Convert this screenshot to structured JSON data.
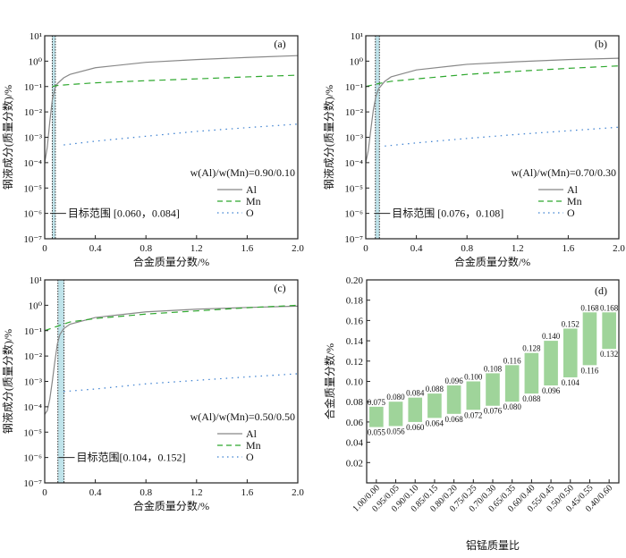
{
  "chart_data": [
    {
      "type": "line",
      "panel_label": "(a)",
      "xlabel": "合金质量分数/%",
      "ylabel": "钢液成分(质量分数)/%",
      "xlim": [
        0,
        2.0
      ],
      "ylim_log10": [
        -7,
        1
      ],
      "xticks": [
        "0",
        "0.4",
        "0.8",
        "1.2",
        "1.6",
        "2.0"
      ],
      "ratio_text": "w(Al)/w(Mn)=0.90/0.10",
      "target_text": "目标范围 [0.060，0.084]",
      "target": [
        0.06,
        0.084
      ],
      "series": [
        {
          "name": "Al",
          "x": [
            0,
            0.02,
            0.04,
            0.06,
            0.08,
            0.1,
            0.15,
            0.2,
            0.4,
            0.8,
            1.2,
            1.6,
            2.0
          ],
          "y": [
            0.0001,
            0.0004,
            0.004,
            0.03,
            0.08,
            0.13,
            0.22,
            0.3,
            0.55,
            0.9,
            1.15,
            1.4,
            1.65
          ]
        },
        {
          "name": "Mn",
          "x": [
            0.06,
            0.1,
            0.2,
            0.4,
            0.8,
            1.2,
            1.6,
            2.0
          ],
          "y": [
            0.1,
            0.11,
            0.12,
            0.14,
            0.17,
            0.2,
            0.24,
            0.28
          ]
        },
        {
          "name": "O",
          "x": [
            0.15,
            0.4,
            0.8,
            1.2,
            1.6,
            2.0
          ],
          "y": [
            0.0005,
            0.0007,
            0.0011,
            0.0017,
            0.0024,
            0.0033
          ]
        }
      ]
    },
    {
      "type": "line",
      "panel_label": "(b)",
      "xlabel": "合金质量分数/%",
      "ylabel": "钢液成分(质量分数)/%",
      "xlim": [
        0,
        2.0
      ],
      "ylim_log10": [
        -7,
        1
      ],
      "xticks": [
        "0",
        "0.4",
        "0.8",
        "1.2",
        "1.6",
        "2.0"
      ],
      "ratio_text": "w(Al)/w(Mn)=0.70/0.30",
      "target_text": "目标范围 [0.076，0.108]",
      "target": [
        0.076,
        0.108
      ],
      "series": [
        {
          "name": "Al",
          "x": [
            0,
            0.02,
            0.04,
            0.06,
            0.08,
            0.1,
            0.15,
            0.2,
            0.4,
            0.8,
            1.2,
            1.6,
            2.0
          ],
          "y": [
            0.0001,
            0.0003,
            0.002,
            0.012,
            0.04,
            0.08,
            0.16,
            0.24,
            0.45,
            0.75,
            0.95,
            1.15,
            1.3
          ]
        },
        {
          "name": "Mn",
          "x": [
            0,
            0.1,
            0.2,
            0.4,
            0.8,
            1.2,
            1.6,
            2.0
          ],
          "y": [
            0.1,
            0.13,
            0.16,
            0.2,
            0.3,
            0.4,
            0.52,
            0.65
          ]
        },
        {
          "name": "O",
          "x": [
            0.15,
            0.4,
            0.8,
            1.2,
            1.6,
            2.0
          ],
          "y": [
            0.00045,
            0.0006,
            0.0009,
            0.0013,
            0.0018,
            0.0025
          ]
        }
      ]
    },
    {
      "type": "line",
      "panel_label": "(c)",
      "xlabel": "合金质量分数/%",
      "ylabel": "钢液成分(质量分数)/%",
      "xlim": [
        0,
        2.0
      ],
      "ylim_log10": [
        -7,
        1
      ],
      "xticks": [
        "0",
        "0.4",
        "0.8",
        "1.2",
        "1.6",
        "2.0"
      ],
      "ratio_text": "w(Al)/w(Mn)=0.50/0.50",
      "target_text": "目标范围[0.104，0.152]",
      "target": [
        0.104,
        0.152
      ],
      "series": [
        {
          "name": "Al",
          "x": [
            0,
            0.02,
            0.04,
            0.06,
            0.08,
            0.1,
            0.12,
            0.15,
            0.2,
            0.4,
            0.8,
            1.2,
            1.6,
            2.0
          ],
          "y": [
            5e-05,
            7e-05,
            0.0002,
            0.001,
            0.006,
            0.03,
            0.07,
            0.12,
            0.18,
            0.33,
            0.55,
            0.7,
            0.82,
            0.92
          ]
        },
        {
          "name": "Mn",
          "x": [
            0,
            0.1,
            0.2,
            0.4,
            0.8,
            1.2,
            1.6,
            2.0
          ],
          "y": [
            0.1,
            0.15,
            0.22,
            0.3,
            0.45,
            0.6,
            0.8,
            1.0
          ]
        },
        {
          "name": "O",
          "x": [
            0.15,
            0.4,
            0.8,
            1.2,
            1.6,
            2.0
          ],
          "y": [
            0.0004,
            0.0005,
            0.0008,
            0.0011,
            0.0015,
            0.002
          ]
        }
      ]
    },
    {
      "type": "bar",
      "panel_label": "(d)",
      "xlabel": "铝锰质量比",
      "ylabel": "合金质量分数/%",
      "ylim": [
        0,
        0.2
      ],
      "yticks": [
        "0.02",
        "0.04",
        "0.06",
        "0.08",
        "0.10",
        "0.12",
        "0.14",
        "0.16",
        "0.18",
        "0.20"
      ],
      "categories": [
        "1.00/0.00",
        "0.95/0.05",
        "0.90/0.10",
        "0.85/0.15",
        "0.80/0.20",
        "0.75/0.25",
        "0.70/0.30",
        "0.65/0.35",
        "0.60/0.40",
        "0.55/0.45",
        "0.50/0.50",
        "0.45/0.55",
        "0.40/0.60"
      ],
      "low": [
        "0.055",
        "0.056",
        "0.060",
        "0.064",
        "0.068",
        "0.072",
        "0.076",
        "0.080",
        "0.088",
        "0.096",
        "0.104",
        "0.116",
        "0.132"
      ],
      "high": [
        "0.075",
        "0.080",
        "0.084",
        "0.088",
        "0.096",
        "0.100",
        "0.108",
        "0.116",
        "0.128",
        "0.140",
        "0.152",
        "0.168",
        "0.168"
      ],
      "bar_color": "#9fd49a"
    }
  ],
  "colors": {
    "Al": "#888888",
    "Mn": "#2ea82e",
    "O": "#3a7fd0",
    "target": "#bfe3ea"
  }
}
